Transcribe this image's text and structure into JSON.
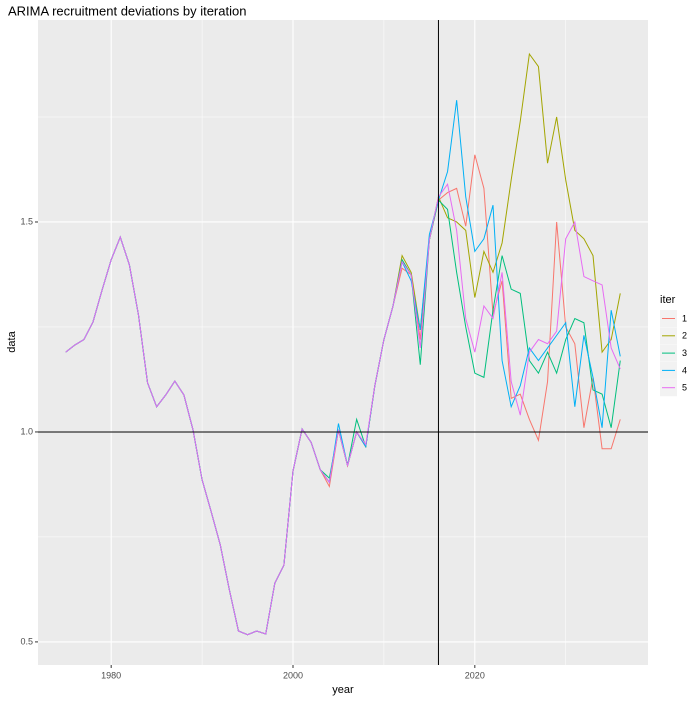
{
  "chart_data": {
    "type": "line",
    "title": "ARIMA recruitment deviations by iteration",
    "x_label": "year",
    "y_label": "data",
    "legend_title": "iter",
    "x": [
      1975,
      1976,
      1977,
      1978,
      1979,
      1980,
      1981,
      1982,
      1983,
      1984,
      1985,
      1986,
      1987,
      1988,
      1989,
      1990,
      1991,
      1992,
      1993,
      1994,
      1995,
      1996,
      1997,
      1998,
      1999,
      2000,
      2001,
      2002,
      2003,
      2004,
      2005,
      2006,
      2007,
      2008,
      2009,
      2010,
      2011,
      2012,
      2013,
      2014,
      2015,
      2016,
      2017,
      2018,
      2019,
      2020,
      2021,
      2022,
      2023,
      2024,
      2025,
      2026,
      2027,
      2028,
      2029,
      2030,
      2031,
      2032,
      2033,
      2034,
      2035,
      2036
    ],
    "series": [
      {
        "name": "1",
        "color": "#F8766D",
        "values": [
          1.19,
          1.207,
          1.22,
          1.262,
          1.338,
          1.41,
          1.464,
          1.398,
          1.279,
          1.117,
          1.06,
          1.088,
          1.121,
          1.088,
          1.005,
          0.886,
          0.81,
          0.731,
          0.624,
          0.526,
          0.517,
          0.526,
          0.519,
          0.64,
          0.683,
          0.907,
          1.007,
          0.975,
          0.91,
          0.87,
          1.005,
          0.92,
          1.0,
          0.965,
          1.11,
          1.22,
          1.3,
          1.39,
          1.374,
          1.22,
          1.457,
          1.552,
          1.57,
          1.58,
          1.49,
          1.66,
          1.58,
          1.28,
          1.36,
          1.08,
          1.09,
          1.03,
          0.98,
          1.12,
          1.5,
          1.25,
          1.21,
          1.01,
          1.13,
          0.96,
          0.96,
          1.03
        ]
      },
      {
        "name": "2",
        "color": "#A3A500",
        "values": [
          1.19,
          1.207,
          1.22,
          1.262,
          1.338,
          1.41,
          1.464,
          1.398,
          1.279,
          1.117,
          1.06,
          1.088,
          1.121,
          1.088,
          1.005,
          0.886,
          0.81,
          0.731,
          0.624,
          0.526,
          0.517,
          0.526,
          0.519,
          0.64,
          0.683,
          0.907,
          1.007,
          0.975,
          0.91,
          0.88,
          1.005,
          0.92,
          1.0,
          0.965,
          1.11,
          1.22,
          1.3,
          1.42,
          1.38,
          1.243,
          1.457,
          1.56,
          1.51,
          1.5,
          1.48,
          1.32,
          1.43,
          1.38,
          1.45,
          1.6,
          1.74,
          1.9,
          1.87,
          1.64,
          1.75,
          1.6,
          1.48,
          1.46,
          1.42,
          1.19,
          1.22,
          1.33
        ]
      },
      {
        "name": "3",
        "color": "#00BF7D",
        "values": [
          1.19,
          1.207,
          1.22,
          1.262,
          1.338,
          1.41,
          1.464,
          1.398,
          1.279,
          1.117,
          1.06,
          1.088,
          1.121,
          1.088,
          1.005,
          0.886,
          0.81,
          0.731,
          0.624,
          0.526,
          0.517,
          0.526,
          0.519,
          0.64,
          0.683,
          0.907,
          1.007,
          0.975,
          0.91,
          0.89,
          1.005,
          0.92,
          1.03,
          0.965,
          1.11,
          1.22,
          1.3,
          1.41,
          1.374,
          1.16,
          1.457,
          1.552,
          1.53,
          1.38,
          1.25,
          1.14,
          1.13,
          1.29,
          1.42,
          1.34,
          1.33,
          1.17,
          1.14,
          1.19,
          1.14,
          1.22,
          1.27,
          1.26,
          1.1,
          1.09,
          1.01,
          1.17
        ]
      },
      {
        "name": "4",
        "color": "#00B0F6",
        "values": [
          1.19,
          1.207,
          1.22,
          1.262,
          1.338,
          1.41,
          1.464,
          1.398,
          1.279,
          1.117,
          1.06,
          1.088,
          1.121,
          1.088,
          1.005,
          0.886,
          0.81,
          0.731,
          0.624,
          0.526,
          0.517,
          0.526,
          0.519,
          0.64,
          0.683,
          0.907,
          1.007,
          0.975,
          0.91,
          0.88,
          1.02,
          0.92,
          1.0,
          0.965,
          1.11,
          1.22,
          1.3,
          1.405,
          1.36,
          1.243,
          1.47,
          1.552,
          1.62,
          1.79,
          1.56,
          1.43,
          1.46,
          1.54,
          1.17,
          1.06,
          1.11,
          1.2,
          1.17,
          1.2,
          1.23,
          1.26,
          1.06,
          1.23,
          1.13,
          1.01,
          1.29,
          1.18
        ]
      },
      {
        "name": "5",
        "color": "#E76BF3",
        "values": [
          1.19,
          1.207,
          1.22,
          1.262,
          1.338,
          1.41,
          1.464,
          1.398,
          1.279,
          1.117,
          1.06,
          1.088,
          1.121,
          1.088,
          1.005,
          0.886,
          0.81,
          0.731,
          0.624,
          0.526,
          0.517,
          0.526,
          0.519,
          0.64,
          0.683,
          0.907,
          1.007,
          0.975,
          0.91,
          0.88,
          1.005,
          0.92,
          1.0,
          0.97,
          1.11,
          1.22,
          1.3,
          1.405,
          1.374,
          1.2,
          1.457,
          1.56,
          1.59,
          1.48,
          1.27,
          1.19,
          1.3,
          1.27,
          1.38,
          1.12,
          1.04,
          1.19,
          1.22,
          1.21,
          1.24,
          1.46,
          1.5,
          1.37,
          1.36,
          1.35,
          1.2,
          1.15
        ]
      }
    ],
    "xlim": [
      1971.95,
      2039.05
    ],
    "xticks": [
      1980,
      2000,
      2020
    ],
    "ylim": [
      0.445,
      1.981
    ],
    "yticks": [
      {
        "value": 0.5,
        "label": "0.5"
      },
      {
        "value": 1,
        "label": "1.0"
      },
      {
        "value": 1.5,
        "label": "1.5"
      }
    ],
    "vline": 2016,
    "hline": 1,
    "grid": true,
    "legend": "right"
  }
}
